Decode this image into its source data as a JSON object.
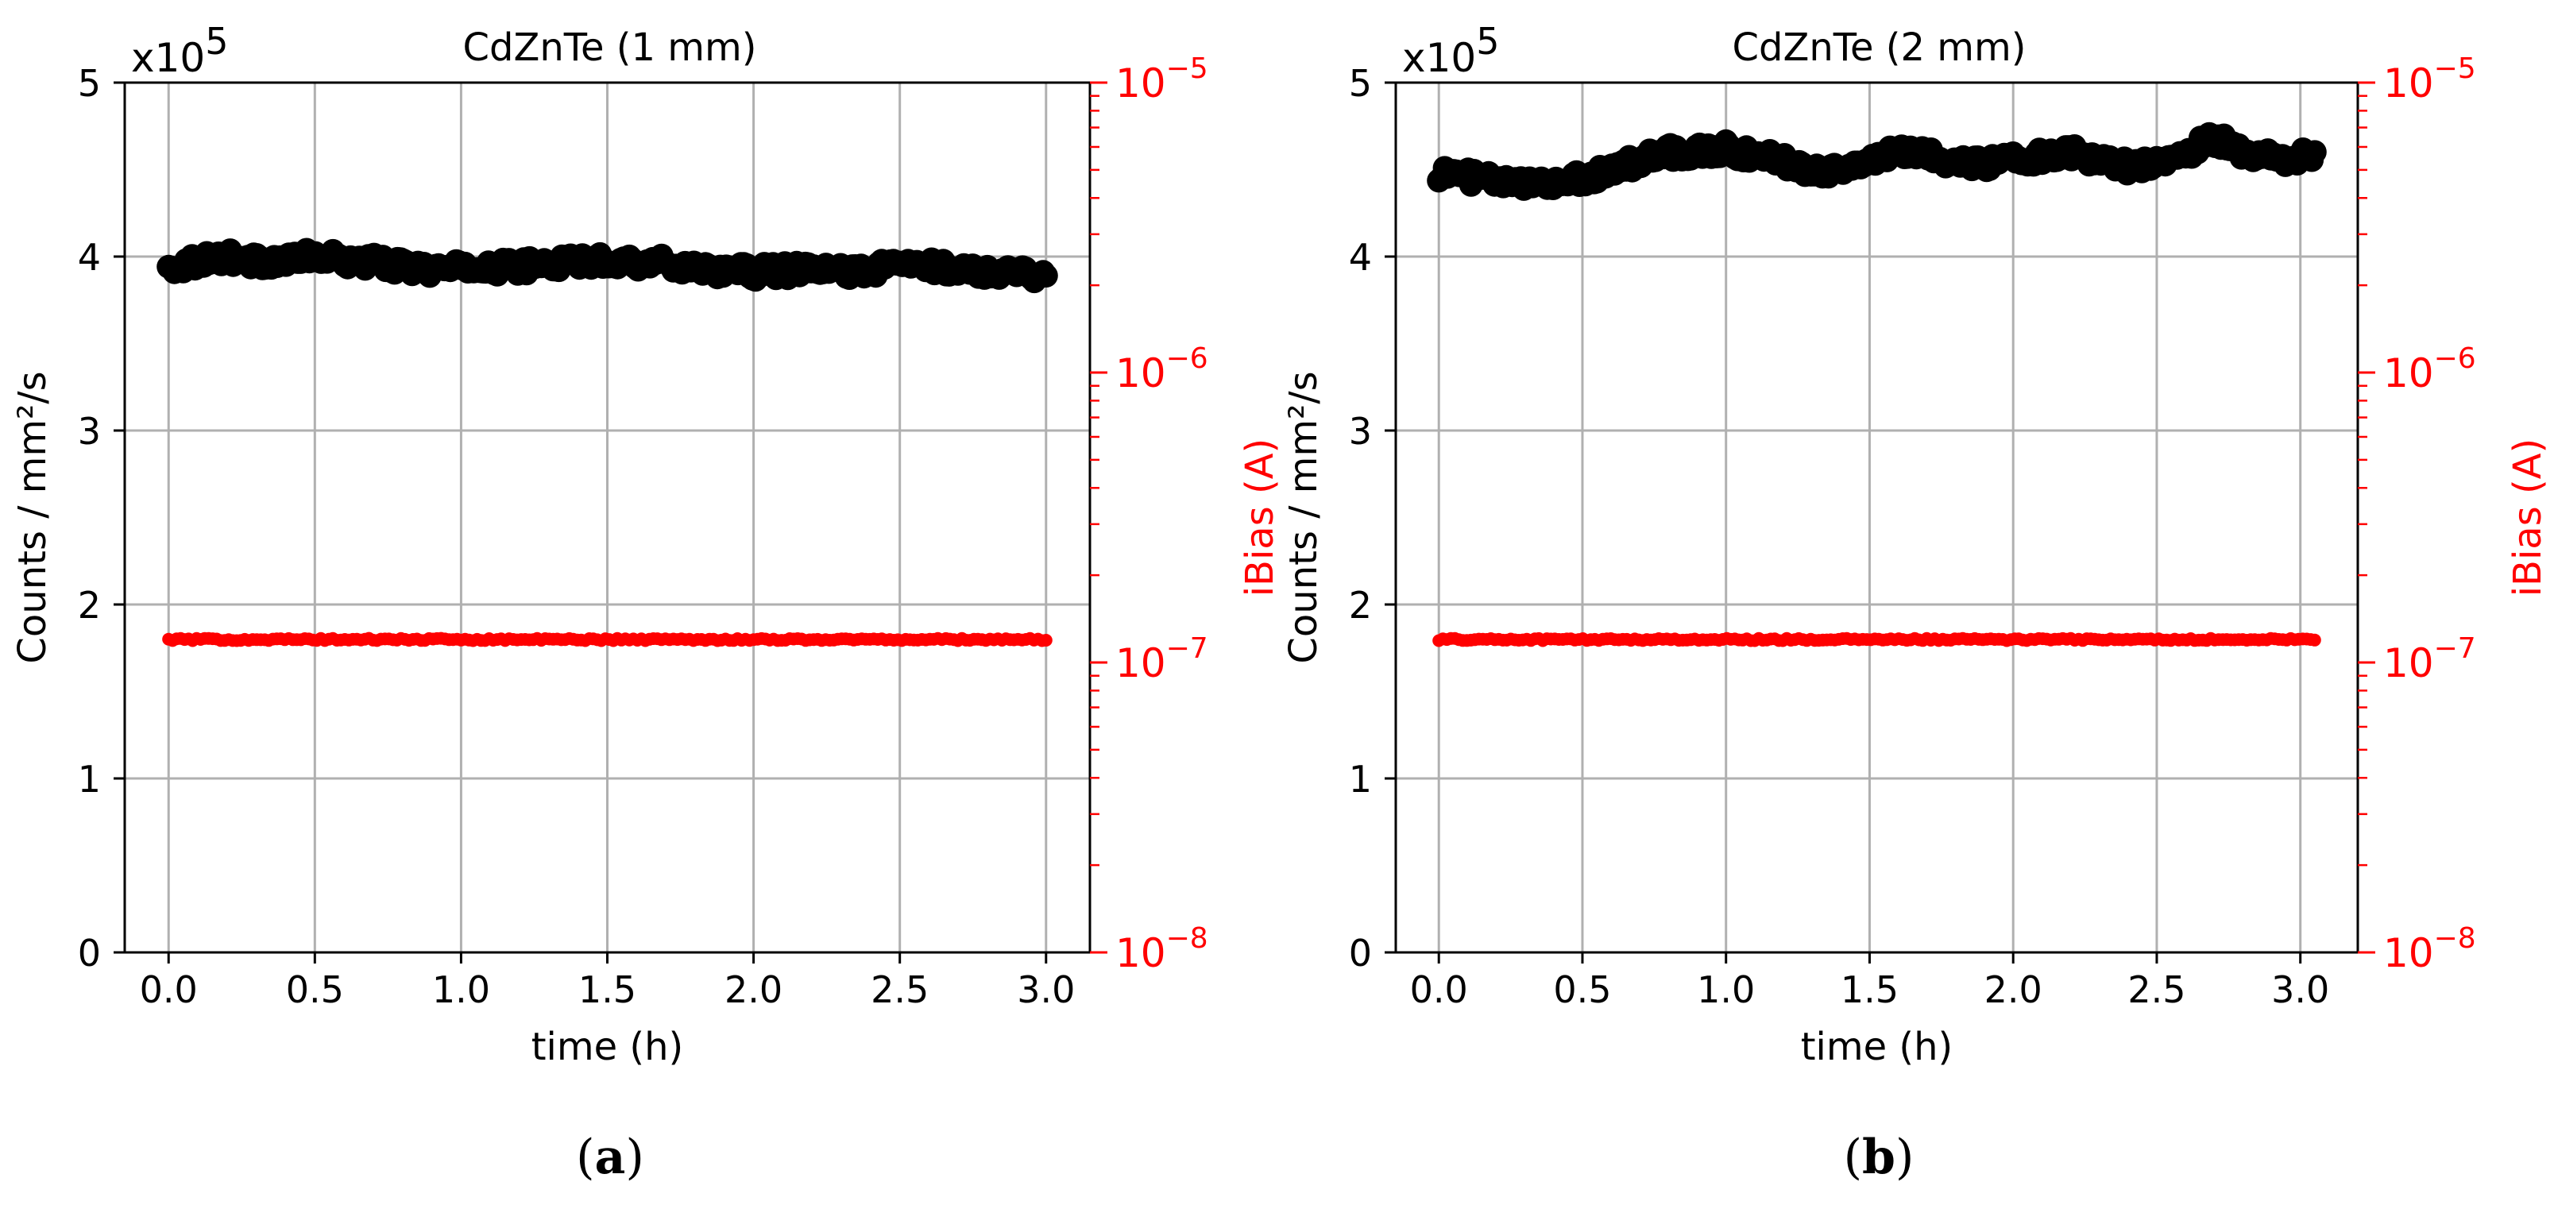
{
  "figure": {
    "panels": [
      {
        "caption_letter": "a"
      },
      {
        "caption_letter": "b"
      }
    ]
  },
  "colors": {
    "counts": "#000000",
    "ibias": "#ff0000",
    "grid": "#b0b0b0",
    "axis": "#000000"
  },
  "chart_data": [
    {
      "type": "scatter",
      "title": "CdZnTe (1 mm)",
      "xlabel": "time (h)",
      "ylabel_left": "Counts / mm²/s",
      "ylabel_right": "iBias (A)",
      "y_multiplier": {
        "base": "x10",
        "exp": "5"
      },
      "xlim": [
        -0.15,
        3.15
      ],
      "ylim_left": [
        0,
        5
      ],
      "ylim_right_log10": [
        -8,
        -5
      ],
      "grid": true,
      "x_ticks": [
        "0.0",
        "0.5",
        "1.0",
        "1.5",
        "2.0",
        "2.5",
        "3.0"
      ],
      "x_tick_values": [
        0,
        0.5,
        1,
        1.5,
        2,
        2.5,
        3
      ],
      "y_ticks_left": [
        "0",
        "1",
        "2",
        "3",
        "4",
        "5"
      ],
      "y_ticks_right": [
        {
          "base": "10",
          "exp": "−8",
          "log": -8
        },
        {
          "base": "10",
          "exp": "−7",
          "log": -7
        },
        {
          "base": "10",
          "exp": "−6",
          "log": -6
        },
        {
          "base": "10",
          "exp": "−5",
          "log": -5
        }
      ],
      "series": [
        {
          "name": "Counts",
          "axis": "left",
          "x": [
            0.0,
            0.1,
            0.2,
            0.3,
            0.4,
            0.5,
            0.6,
            0.7,
            0.8,
            0.9,
            1.0,
            1.1,
            1.2,
            1.3,
            1.4,
            1.5,
            1.6,
            1.7,
            1.8,
            1.9,
            2.0,
            2.1,
            2.2,
            2.3,
            2.4,
            2.5,
            2.6,
            2.7,
            2.8,
            2.9,
            3.0
          ],
          "y": [
            3.93,
            3.98,
            4.0,
            3.97,
            3.98,
            4.0,
            3.98,
            3.97,
            3.94,
            3.93,
            3.93,
            3.94,
            3.94,
            3.96,
            3.97,
            3.98,
            3.97,
            3.96,
            3.94,
            3.92,
            3.91,
            3.92,
            3.92,
            3.92,
            3.92,
            3.96,
            3.95,
            3.92,
            3.92,
            3.92,
            3.89
          ]
        },
        {
          "name": "iBias",
          "axis": "right",
          "x": [
            0.0,
            0.5,
            1.0,
            1.5,
            2.0,
            2.5,
            3.0
          ],
          "y": [
            1.2e-07,
            1.2e-07,
            1.2e-07,
            1.2e-07,
            1.2e-07,
            1.2e-07,
            1.2e-07
          ]
        }
      ]
    },
    {
      "type": "scatter",
      "title": "CdZnTe (2 mm)",
      "xlabel": "time (h)",
      "ylabel_left": "Counts / mm²/s",
      "ylabel_right": "iBias (A)",
      "y_multiplier": {
        "base": "x10",
        "exp": "5"
      },
      "xlim": [
        -0.15,
        3.2
      ],
      "ylim_left": [
        0,
        5
      ],
      "ylim_right_log10": [
        -8,
        -5
      ],
      "grid": true,
      "x_ticks": [
        "0.0",
        "0.5",
        "1.0",
        "1.5",
        "2.0",
        "2.5",
        "3.0"
      ],
      "x_tick_values": [
        0,
        0.5,
        1,
        1.5,
        2,
        2.5,
        3
      ],
      "y_ticks_left": [
        "0",
        "1",
        "2",
        "3",
        "4",
        "5"
      ],
      "y_ticks_right": [
        {
          "base": "10",
          "exp": "−8",
          "log": -8
        },
        {
          "base": "10",
          "exp": "−7",
          "log": -7
        },
        {
          "base": "10",
          "exp": "−6",
          "log": -6
        },
        {
          "base": "10",
          "exp": "−5",
          "log": -5
        }
      ],
      "series": [
        {
          "name": "Counts",
          "axis": "left",
          "x": [
            0.0,
            0.1,
            0.2,
            0.3,
            0.4,
            0.5,
            0.6,
            0.7,
            0.8,
            0.9,
            1.0,
            1.1,
            1.2,
            1.3,
            1.4,
            1.5,
            1.6,
            1.7,
            1.8,
            1.9,
            2.0,
            2.1,
            2.2,
            2.3,
            2.4,
            2.5,
            2.6,
            2.7,
            2.8,
            2.9,
            3.0,
            3.05
          ],
          "y": [
            4.48,
            4.46,
            4.43,
            4.41,
            4.43,
            4.45,
            4.5,
            4.55,
            4.6,
            4.6,
            4.62,
            4.58,
            4.55,
            4.5,
            4.5,
            4.55,
            4.6,
            4.58,
            4.55,
            4.54,
            4.55,
            4.58,
            4.6,
            4.55,
            4.52,
            4.55,
            4.6,
            4.68,
            4.6,
            4.57,
            4.57,
            4.6
          ]
        },
        {
          "name": "iBias",
          "axis": "right",
          "x": [
            0.0,
            0.5,
            1.0,
            1.5,
            2.0,
            2.5,
            3.0,
            3.05
          ],
          "y": [
            1.2e-07,
            1.2e-07,
            1.2e-07,
            1.2e-07,
            1.2e-07,
            1.2e-07,
            1.2e-07,
            1.2e-07
          ]
        }
      ]
    }
  ]
}
